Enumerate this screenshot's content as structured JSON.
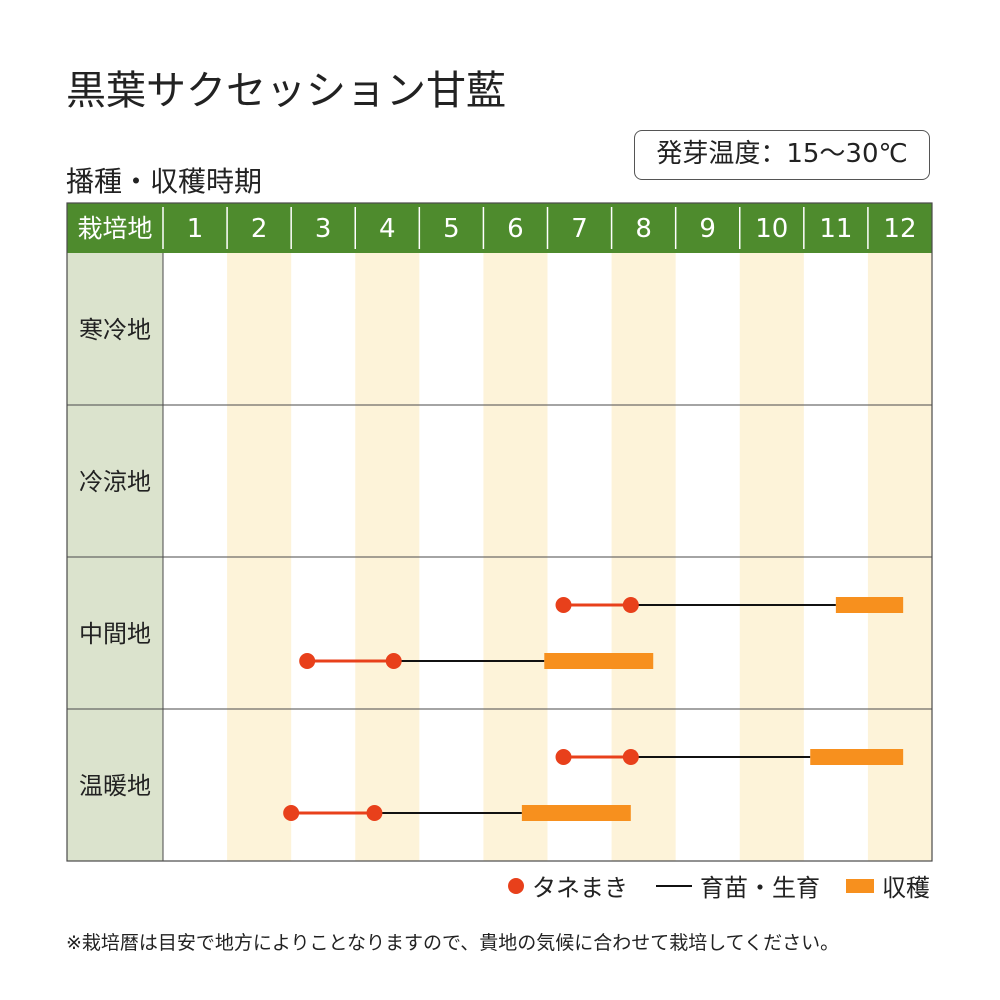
{
  "title": "黒葉サクセッション甘藍",
  "subtitle": "播種・収穫時期",
  "temperature": "発芽温度：15〜30℃",
  "colors": {
    "header_bg": "#4e8b2d",
    "header_divider": "#ffffff",
    "region_bg": "#dbe3cd",
    "stripe": "#fdf3d9",
    "sowing": "#e8401b",
    "growing": "#111111",
    "harvest": "#f7901e",
    "border": "#4a4a4a"
  },
  "chart_data": {
    "type": "table",
    "corner_label": "栽培地",
    "months": [
      "1",
      "2",
      "3",
      "4",
      "5",
      "6",
      "7",
      "8",
      "9",
      "10",
      "11",
      "12"
    ],
    "regions": [
      {
        "name": "寒冷地",
        "rows": []
      },
      {
        "name": "冷涼地",
        "rows": []
      },
      {
        "name": "中間地",
        "rows": [
          {
            "sow_start": 7.25,
            "sow_end": 8.3,
            "harvest_start": 11.5,
            "harvest_end": 12.55
          },
          {
            "sow_start": 3.25,
            "sow_end": 4.6,
            "harvest_start": 6.95,
            "harvest_end": 8.65
          }
        ]
      },
      {
        "name": "温暖地",
        "rows": [
          {
            "sow_start": 7.25,
            "sow_end": 8.3,
            "harvest_start": 11.1,
            "harvest_end": 12.55
          },
          {
            "sow_start": 3.0,
            "sow_end": 4.3,
            "harvest_start": 6.6,
            "harvest_end": 8.3
          }
        ]
      }
    ]
  },
  "legend": {
    "sowing": "タネまき",
    "growing": "育苗・生育",
    "harvest": "収穫"
  },
  "note": "※栽培暦は目安で地方によりことなりますので、貴地の気候に合わせて栽培してください。"
}
